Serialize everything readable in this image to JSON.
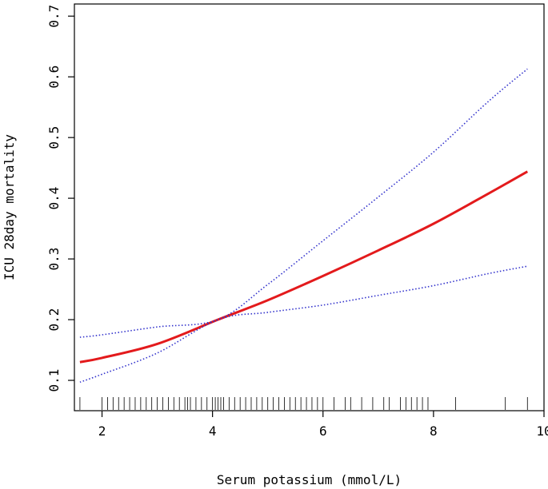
{
  "chart_data": {
    "type": "line",
    "title": "",
    "xlabel": "Serum potassium (mmol/L)",
    "ylabel": "ICU 28day mortality",
    "xlim": [
      1.5,
      10.0
    ],
    "ylim": [
      0.05,
      0.72
    ],
    "xticks": [
      2,
      4,
      6,
      8,
      10
    ],
    "yticks": [
      0.1,
      0.2,
      0.3,
      0.4,
      0.5,
      0.6,
      0.7
    ],
    "xtick_labels": [
      "2",
      "4",
      "6",
      "8",
      "10"
    ],
    "ytick_labels": [
      "0.1",
      "0.2",
      "0.3",
      "0.4",
      "0.5",
      "0.6",
      "0.7"
    ],
    "grid": false,
    "legend": "none",
    "series": [
      {
        "role": "estimate",
        "style": "solid",
        "color": "#e31a1c",
        "x": [
          1.6,
          2.0,
          3.0,
          4.1,
          5.0,
          6.0,
          7.0,
          8.0,
          9.0,
          9.7
        ],
        "y": [
          0.13,
          0.137,
          0.16,
          0.2,
          0.232,
          0.272,
          0.314,
          0.358,
          0.408,
          0.444
        ]
      },
      {
        "role": "upper-ci",
        "style": "dotted",
        "color": "#3333cc",
        "x": [
          1.6,
          2.0,
          3.0,
          4.1,
          5.0,
          6.0,
          7.0,
          8.0,
          9.0,
          9.7
        ],
        "y": [
          0.171,
          0.175,
          0.188,
          0.2,
          0.258,
          0.33,
          0.402,
          0.476,
          0.56,
          0.613
        ]
      },
      {
        "role": "lower-ci",
        "style": "dotted",
        "color": "#3333cc",
        "x": [
          1.6,
          2.0,
          3.0,
          4.1,
          5.0,
          6.0,
          7.0,
          8.0,
          9.0,
          9.7
        ],
        "y": [
          0.097,
          0.11,
          0.145,
          0.2,
          0.212,
          0.224,
          0.24,
          0.256,
          0.276,
          0.288
        ]
      }
    ],
    "rug": [
      1.6,
      2.0,
      2.1,
      2.2,
      2.3,
      2.4,
      2.5,
      2.6,
      2.7,
      2.8,
      2.9,
      3.0,
      3.1,
      3.2,
      3.3,
      3.4,
      3.5,
      3.55,
      3.6,
      3.7,
      3.8,
      3.9,
      4.0,
      4.05,
      4.1,
      4.15,
      4.2,
      4.3,
      4.4,
      4.5,
      4.6,
      4.7,
      4.8,
      4.9,
      5.0,
      5.1,
      5.2,
      5.3,
      5.4,
      5.5,
      5.6,
      5.7,
      5.8,
      5.9,
      6.0,
      6.2,
      6.4,
      6.5,
      6.7,
      6.9,
      7.1,
      7.2,
      7.4,
      7.5,
      7.6,
      7.7,
      7.8,
      7.9,
      8.4,
      9.3,
      9.7
    ]
  }
}
